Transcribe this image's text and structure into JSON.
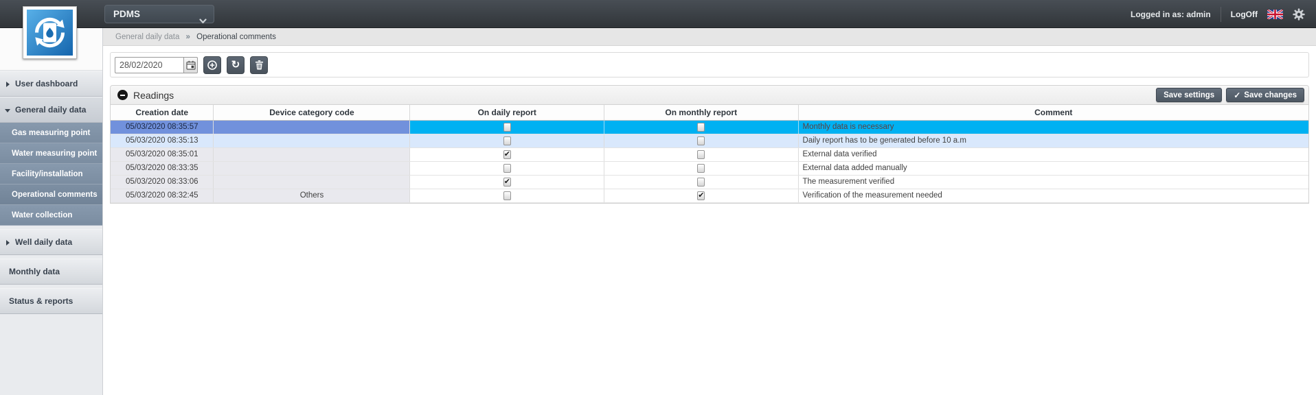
{
  "topbar": {
    "app_selector": "PDMS",
    "logged_in_label": "Logged in as:",
    "logged_in_user": "admin",
    "logoff_label": "LogOff"
  },
  "sidebar": {
    "items": [
      {
        "label": "User dashboard"
      },
      {
        "label": "General daily data"
      },
      {
        "label": "Well daily data"
      },
      {
        "label": "Monthly data"
      },
      {
        "label": "Status & reports"
      }
    ],
    "sub_items": [
      {
        "label": "Gas measuring point"
      },
      {
        "label": "Water measuring point"
      },
      {
        "label": "Facility/installation"
      },
      {
        "label": "Operational comments",
        "active": true
      },
      {
        "label": "Water collection"
      }
    ]
  },
  "breadcrumb": {
    "parent": "General daily data",
    "separator": "»",
    "current": "Operational comments"
  },
  "toolbar": {
    "date_value": "28/02/2020"
  },
  "panel": {
    "title": "Readings",
    "save_settings_label": "Save settings",
    "save_changes_label": "Save changes"
  },
  "icons": {
    "refresh_glyph": "↻",
    "check_glyph": "✓"
  },
  "table": {
    "columns": [
      "Creation date",
      "Device category code",
      "On daily report",
      "On monthly report",
      "Comment"
    ],
    "rows": [
      {
        "date": "05/03/2020 08:35:57",
        "device": "",
        "daily": false,
        "monthly": false,
        "comment": "Monthly data is necessary",
        "state": "sel"
      },
      {
        "date": "05/03/2020 08:35:13",
        "device": "",
        "daily": false,
        "monthly": false,
        "comment": "Daily report has to be generated before 10 a.m",
        "state": "alt"
      },
      {
        "date": "05/03/2020 08:35:01",
        "device": "",
        "daily": true,
        "monthly": false,
        "comment": "External data verified",
        "state": "plain"
      },
      {
        "date": "05/03/2020 08:33:35",
        "device": "",
        "daily": false,
        "monthly": false,
        "comment": "External data added manually",
        "state": "plain"
      },
      {
        "date": "05/03/2020 08:33:06",
        "device": "",
        "daily": true,
        "monthly": false,
        "comment": "The measurement verified",
        "state": "plain"
      },
      {
        "date": "05/03/2020 08:32:45",
        "device": "Others",
        "daily": false,
        "monthly": true,
        "comment": "Verification of the measurement needed",
        "state": "plain"
      }
    ]
  },
  "colors": {
    "selected_row_left": "#7191dc",
    "selected_row_highlight": "#00b1f2",
    "alt_row": "#d9e8fc",
    "shaded_cell": "#e9e9ee",
    "button_slate": "#4d5762",
    "topbar": "#3a3f44",
    "sidebar_subitem": "#7b8da1"
  }
}
